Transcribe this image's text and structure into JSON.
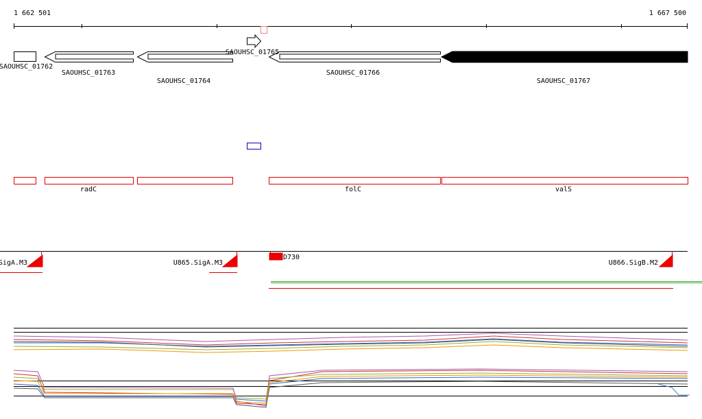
{
  "ruler": {
    "start": "1 662 501",
    "end": "1 667 500"
  },
  "genes": [
    "SAOUHSC_01762",
    "SAOUHSC_01763",
    "SAOUHSC_01764",
    "SAOUHSC_01765",
    "SAOUHSC_01766",
    "SAOUHSC_01767"
  ],
  "gene_names": [
    "radC",
    "folC",
    "valS"
  ],
  "promoters": [
    "SigA.M3",
    "U865.SigA.M3",
    "D730",
    "U866.SigB.M2"
  ]
}
